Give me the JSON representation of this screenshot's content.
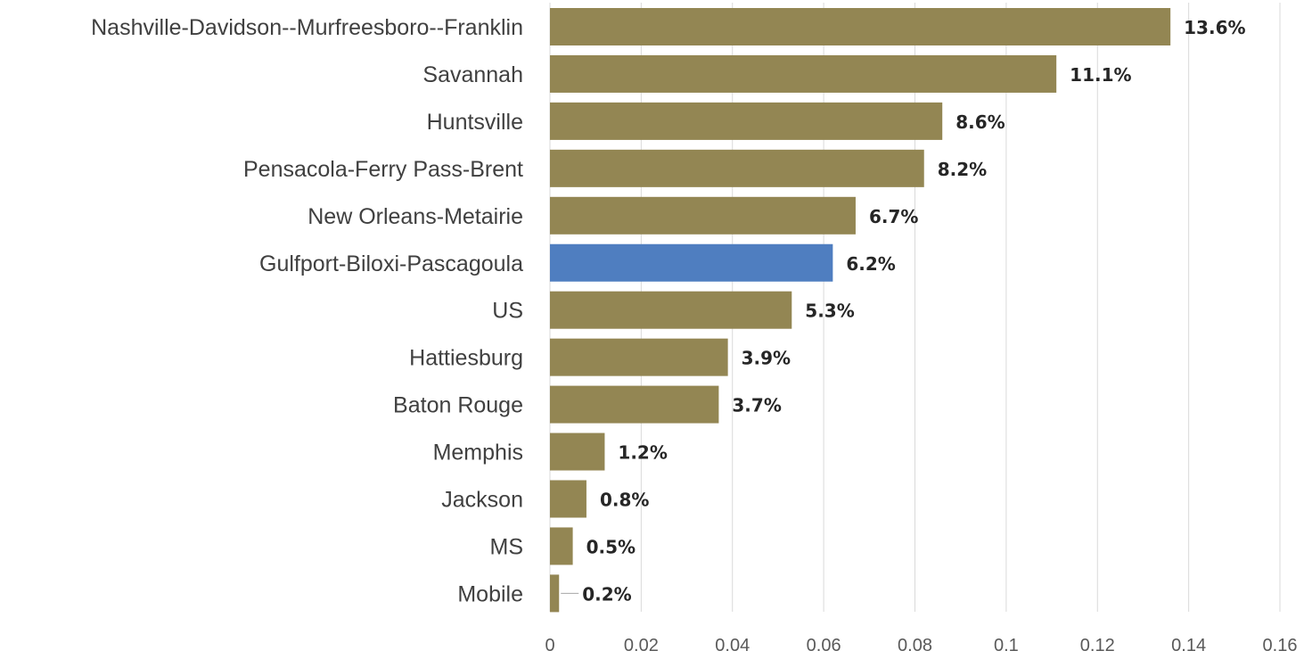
{
  "chart_data": {
    "type": "bar",
    "orientation": "horizontal",
    "categories": [
      "Nashville-Davidson--Murfreesboro--Franklin",
      "Savannah",
      "Huntsville",
      "Pensacola-Ferry Pass-Brent",
      "New Orleans-Metairie",
      "Gulfport-Biloxi-Pascagoula",
      "US",
      "Hattiesburg",
      "Baton Rouge",
      "Memphis",
      "Jackson",
      "MS",
      "Mobile"
    ],
    "values": [
      0.136,
      0.111,
      0.086,
      0.082,
      0.067,
      0.062,
      0.053,
      0.039,
      0.037,
      0.012,
      0.008,
      0.005,
      0.002
    ],
    "data_labels": [
      "13.6%",
      "11.1%",
      "8.6%",
      "8.2%",
      "6.7%",
      "6.2%",
      "5.3%",
      "3.9%",
      "3.7%",
      "1.2%",
      "0.8%",
      "0.5%",
      "0.2%"
    ],
    "highlight_category": "Gulfport-Biloxi-Pascagoula",
    "xlim": [
      0,
      0.16
    ],
    "xticks": [
      0,
      0.02,
      0.04,
      0.06,
      0.08,
      0.1,
      0.12,
      0.14,
      0.16
    ],
    "xtick_labels": [
      "0",
      "0.02",
      "0.04",
      "0.06",
      "0.08",
      "0.1",
      "0.12",
      "0.14",
      "0.16"
    ],
    "grid": "vertical",
    "legend": "none",
    "colors": {
      "bar": "#938653",
      "highlight": "#4f7ec0",
      "grid": "#d9d9d9"
    }
  }
}
